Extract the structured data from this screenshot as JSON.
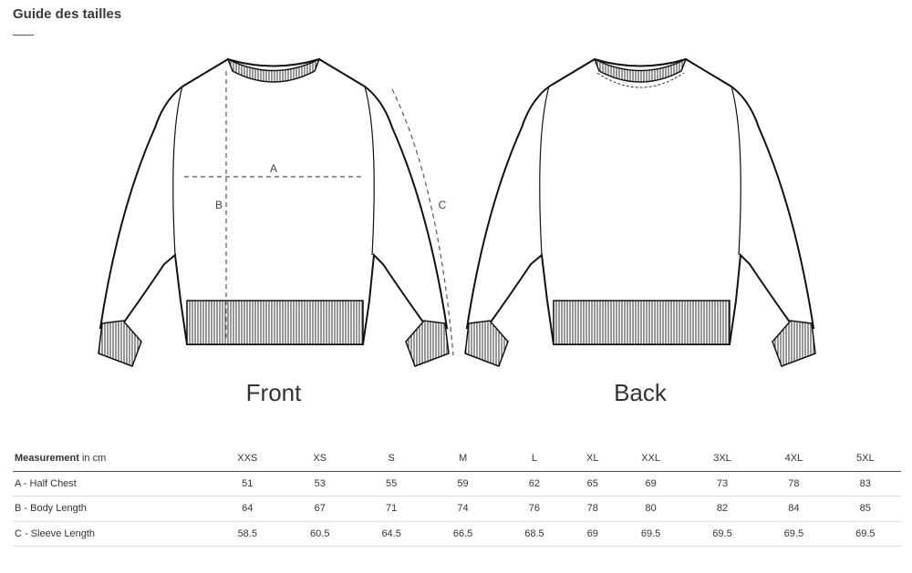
{
  "page": {
    "title": "Guide des tailles"
  },
  "views": {
    "front": "Front",
    "back": "Back",
    "markers": {
      "a": "A",
      "b": "B",
      "c": "C"
    }
  },
  "table": {
    "header_bold": "Measurement",
    "header_unit": " in cm",
    "sizes": [
      "XXS",
      "XS",
      "S",
      "M",
      "L",
      "XL",
      "XXL",
      "3XL",
      "4XL",
      "5XL"
    ],
    "rows": [
      {
        "label": "A - Half Chest",
        "values": [
          "51",
          "53",
          "55",
          "59",
          "62",
          "65",
          "69",
          "73",
          "78",
          "83"
        ]
      },
      {
        "label": "B - Body Length",
        "values": [
          "64",
          "67",
          "71",
          "74",
          "76",
          "78",
          "80",
          "82",
          "84",
          "85"
        ]
      },
      {
        "label": "C - Sleeve Length",
        "values": [
          "58.5",
          "60.5",
          "64.5",
          "66.5",
          "68.5",
          "69",
          "69.5",
          "69.5",
          "69.5",
          "69.5"
        ]
      }
    ]
  }
}
